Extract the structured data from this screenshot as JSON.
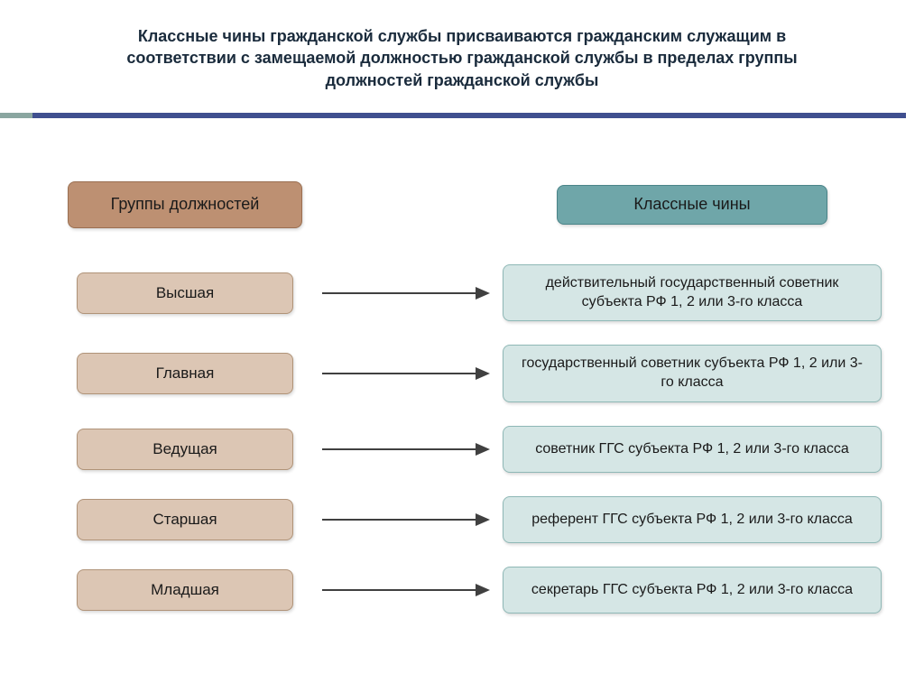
{
  "title": "Классные чины гражданской службы присваиваются гражданским служащим в соответствии с замещаемой должностью гражданской службы в пределах группы должностей гражданской службы",
  "title_color": "#1a2b3c",
  "title_fontsize": 18,
  "divider": {
    "accent_color": "#8aa6a0",
    "main_color": "#3f4f8f"
  },
  "headers": {
    "left": {
      "label": "Группы должностей",
      "bg_color": "#bd9072",
      "border_color": "#9a6f51",
      "text_color": "#1a1a1a"
    },
    "right": {
      "label": "Классные чины",
      "bg_color": "#6fa6a9",
      "border_color": "#4a8488",
      "text_color": "#1a1a1a"
    }
  },
  "arrow_color": "#404040",
  "left_box_style": {
    "bg_color": "#dcc6b4",
    "border_color": "#b09378",
    "text_color": "#1a1a1a"
  },
  "right_box_style": {
    "bg_color": "#d5e6e5",
    "border_color": "#8fb8b6",
    "text_color": "#1a1a1a"
  },
  "rows": [
    {
      "left": "Высшая",
      "right": "действительный государственный советник субъекта РФ 1, 2 или 3-го класса"
    },
    {
      "left": "Главная",
      "right": "государственный советник субъекта РФ 1, 2 или 3-го класса"
    },
    {
      "left": "Ведущая",
      "right": "советник ГГС субъекта РФ 1, 2 или 3-го класса"
    },
    {
      "left": "Старшая",
      "right": "референт ГГС  субъекта РФ 1, 2 или 3-го класса"
    },
    {
      "left": "Младшая",
      "right": "секретарь ГГС субъекта РФ 1, 2 или 3-го класса"
    }
  ]
}
